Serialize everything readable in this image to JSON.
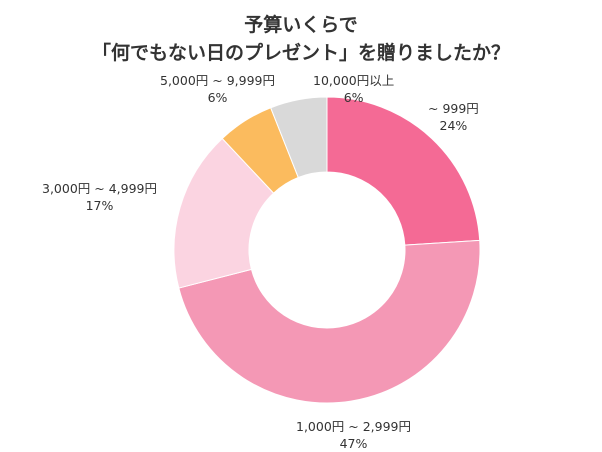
{
  "chart_data": {
    "type": "pie",
    "title_lines": [
      "予算いくらで",
      "「何でもない日のプレゼント」を贈りましたか？"
    ],
    "slices": [
      {
        "label": "~ 999円",
        "value": 24,
        "value_label": "24%",
        "color": "#F46A95"
      },
      {
        "label": "1,000円 ~ 2,999円",
        "value": 47,
        "value_label": "47%",
        "color": "#F498B5"
      },
      {
        "label": "3,000円 ~ 4,999円",
        "value": 17,
        "value_label": "17%",
        "color": "#FBD4E1"
      },
      {
        "label": "5,000円 ~ 9,999円",
        "value": 6,
        "value_label": "6%",
        "color": "#FBBB5E"
      },
      {
        "label": "10,000円以上",
        "value": 6,
        "value_label": "6%",
        "color": "#D9D9D9"
      }
    ],
    "donut": true,
    "start": "top, clockwise"
  }
}
